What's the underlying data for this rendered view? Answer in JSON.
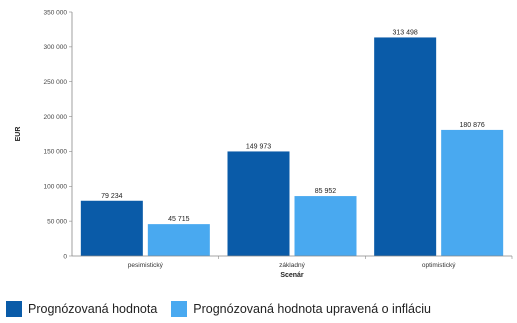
{
  "chart_data": {
    "type": "bar",
    "xlabel": "Scenár",
    "ylabel": "EUR",
    "ylim": [
      0,
      350000
    ],
    "yticks": [
      "0",
      "50 000",
      "100 000",
      "150 000",
      "200 000",
      "250 000",
      "300 000",
      "350 000"
    ],
    "ytick_values": [
      0,
      50000,
      100000,
      150000,
      200000,
      250000,
      300000,
      350000
    ],
    "categories": [
      "pesimistický",
      "základný",
      "optimistický"
    ],
    "series": [
      {
        "name": "Prognózovaná hodnota",
        "color": "#0a5ba8",
        "values": [
          79234,
          149973,
          313498
        ],
        "labels": [
          "79 234",
          "149 973",
          "313 498"
        ]
      },
      {
        "name": "Prognózovaná hodnota upravená o infláciu",
        "color": "#49a9f0",
        "values": [
          45715,
          85952,
          180876
        ],
        "labels": [
          "45 715",
          "85 952",
          "180 876"
        ]
      }
    ],
    "grid": false,
    "legend_position": "bottom-left"
  }
}
